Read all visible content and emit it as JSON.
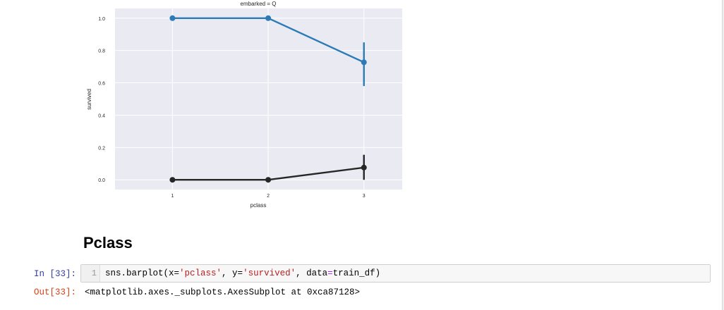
{
  "chart_data": {
    "type": "line",
    "title": "embarked = Q",
    "xlabel": "pclass",
    "ylabel": "survived",
    "categories": [
      "1",
      "2",
      "3"
    ],
    "x": [
      1,
      2,
      3
    ],
    "ylim": [
      -0.06,
      1.06
    ],
    "yticks": [
      0.0,
      0.2,
      0.4,
      0.6,
      0.8,
      1.0
    ],
    "ytick_labels": [
      "0.0",
      "0.2",
      "0.4",
      "0.6",
      "0.8",
      "1.0"
    ],
    "grid": true,
    "series": [
      {
        "color": "#2c7bb6",
        "values": [
          1.0,
          1.0,
          0.727
        ],
        "ci_low": [
          1.0,
          1.0,
          0.58
        ],
        "ci_high": [
          1.0,
          1.0,
          0.85
        ]
      },
      {
        "color": "#262626",
        "values": [
          0.0,
          0.0,
          0.076
        ],
        "ci_low": [
          0.0,
          0.0,
          0.0
        ],
        "ci_high": [
          0.0,
          0.0,
          0.155
        ]
      }
    ]
  },
  "notebook": {
    "heading": "Pclass",
    "in_prompt": "In [33]:",
    "line_number": "1",
    "code": {
      "func": "sns.barplot(x=",
      "x_val": "'pclass'",
      "sep1": ", y=",
      "y_val": "'survived'",
      "sep2": ", data",
      "eq": "=",
      "tail": "train_df)"
    },
    "out_prompt": "Out[33]:",
    "output": "<matplotlib.axes._subplots.AxesSubplot at 0xca87128>"
  }
}
